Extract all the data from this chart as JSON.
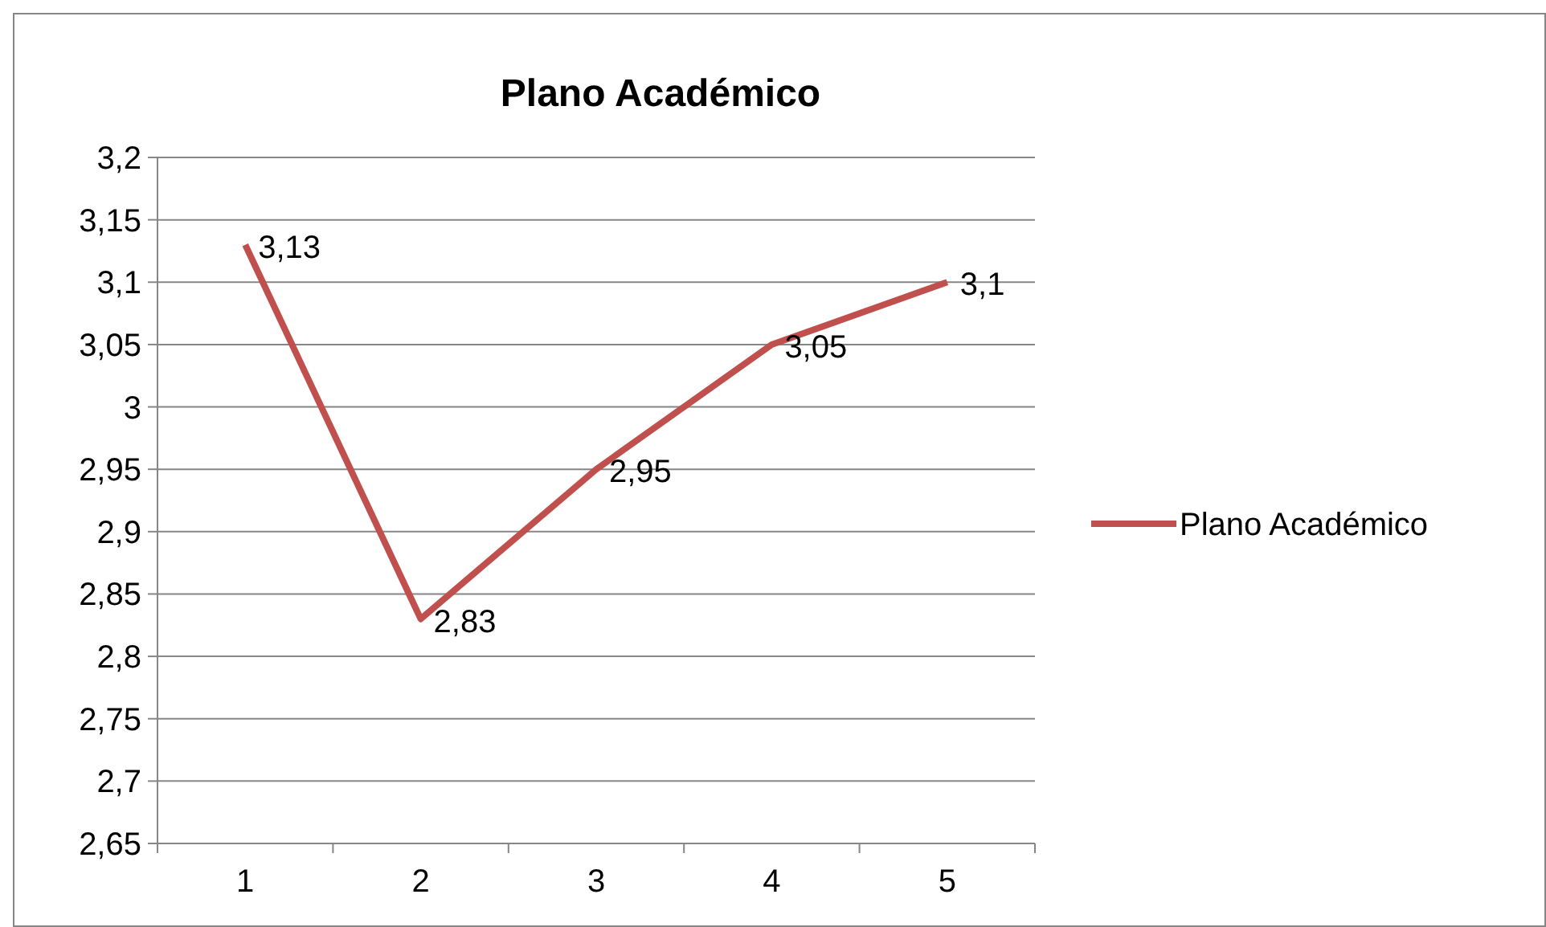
{
  "chart_data": {
    "type": "line",
    "title": "Plano Académico",
    "categories": [
      "1",
      "2",
      "3",
      "4",
      "5"
    ],
    "series": [
      {
        "name": "Plano Académico",
        "color": "#c0504d",
        "values": [
          3.13,
          2.83,
          2.95,
          3.05,
          3.1
        ],
        "value_labels": [
          "3,13",
          "2,83",
          "2,95",
          "3,05",
          "3,1"
        ]
      }
    ],
    "ylim": [
      2.65,
      3.2
    ],
    "yticks": [
      {
        "value": 2.65,
        "label": "2,65"
      },
      {
        "value": 2.7,
        "label": "2,7"
      },
      {
        "value": 2.75,
        "label": "2,75"
      },
      {
        "value": 2.8,
        "label": "2,8"
      },
      {
        "value": 2.85,
        "label": "2,85"
      },
      {
        "value": 2.9,
        "label": "2,9"
      },
      {
        "value": 2.95,
        "label": "2,95"
      },
      {
        "value": 3,
        "label": "3"
      },
      {
        "value": 3.05,
        "label": "3,05"
      },
      {
        "value": 3.1,
        "label": "3,1"
      },
      {
        "value": 3.15,
        "label": "3,15"
      },
      {
        "value": 3.2,
        "label": "3,2"
      }
    ],
    "grid": "y",
    "legend": "right",
    "marker": "none",
    "line_style": "solid"
  }
}
